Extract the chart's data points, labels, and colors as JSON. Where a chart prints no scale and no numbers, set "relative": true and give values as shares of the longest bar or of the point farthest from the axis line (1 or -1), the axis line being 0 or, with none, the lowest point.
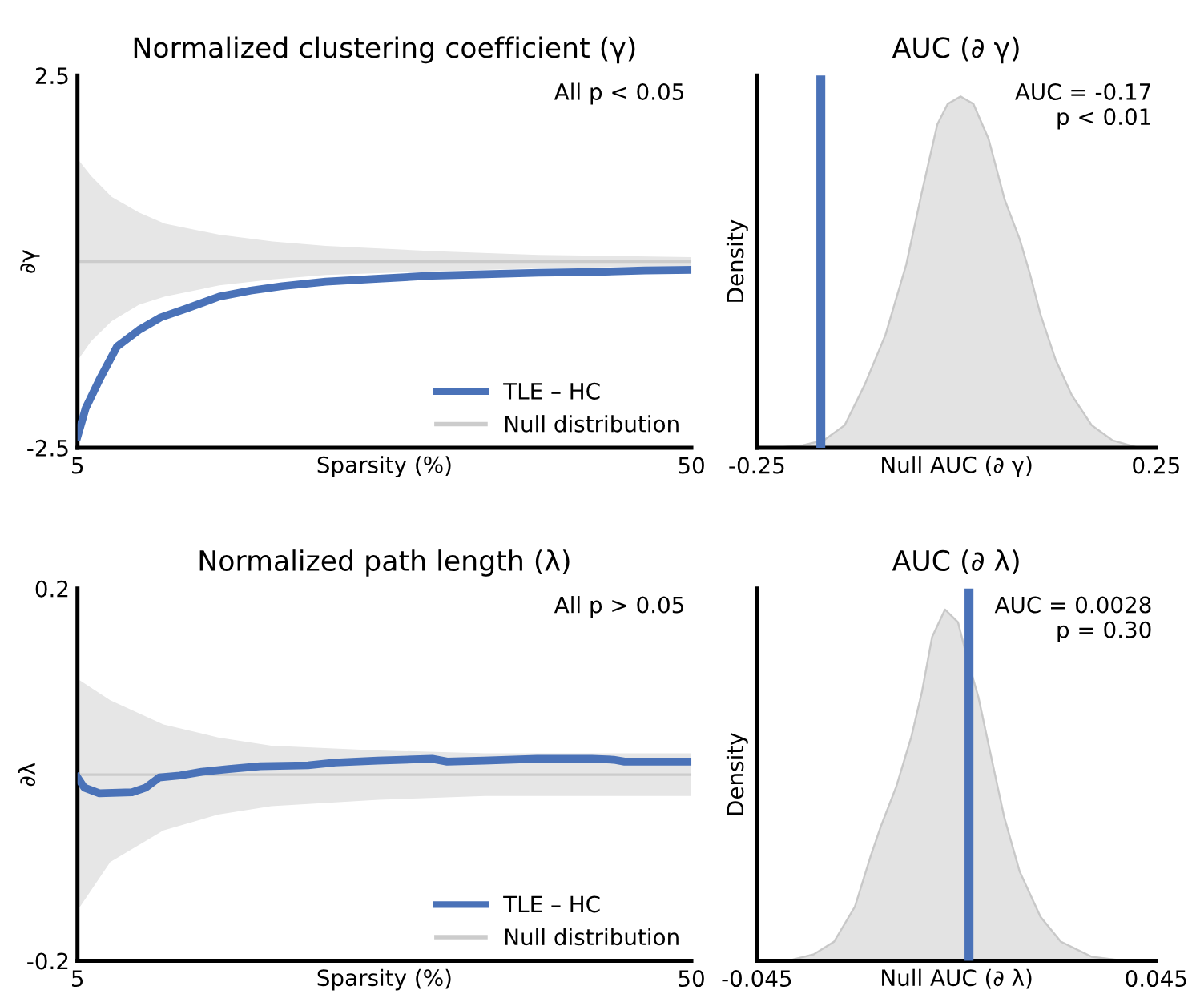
{
  "chart_data": [
    {
      "type": "line",
      "title": "Normalized clustering coefficient (γ)",
      "xlabel": "Sparsity (%)",
      "ylabel": "∂γ",
      "xlim": [
        5,
        50
      ],
      "xticks": [
        5,
        50
      ],
      "ylim": [
        -2.5,
        2.5
      ],
      "yticks": [
        -2.5,
        2.5
      ],
      "legend": "bottom right",
      "grid": false,
      "annotations": [
        "All p < 0.05"
      ],
      "series": [
        {
          "name": "TLE – HC",
          "color": "#4a72b8",
          "x": [
            5,
            5.6,
            6.6,
            7.9,
            9.5,
            11.1,
            13.0,
            15.4,
            17.7,
            20.0,
            23.2,
            27.1,
            31.0,
            34.9,
            38.8,
            42.7,
            46.6,
            50
          ],
          "values": [
            -2.35,
            -1.97,
            -1.59,
            -1.14,
            -0.92,
            -0.75,
            -0.63,
            -0.47,
            -0.39,
            -0.33,
            -0.27,
            -0.23,
            -0.19,
            -0.17,
            -0.15,
            -0.14,
            -0.12,
            -0.11
          ]
        },
        {
          "name": "Null distribution",
          "color": "#cccccc",
          "x": [
            5,
            6,
            7.5,
            9.5,
            11.4,
            15.4,
            19.3,
            23.2,
            31,
            38.8,
            50
          ],
          "values": [
            0,
            0,
            0,
            0,
            0,
            0,
            0,
            0,
            0,
            0,
            0
          ],
          "upper": [
            1.38,
            1.15,
            0.87,
            0.66,
            0.51,
            0.36,
            0.27,
            0.21,
            0.14,
            0.09,
            0.06
          ],
          "lower": [
            -1.33,
            -1.07,
            -0.8,
            -0.58,
            -0.47,
            -0.32,
            -0.24,
            -0.18,
            -0.13,
            -0.09,
            -0.06
          ]
        }
      ]
    },
    {
      "type": "area",
      "title": "AUC (∂ γ)",
      "xlabel": "Null AUC (∂ γ)",
      "ylabel": "Density",
      "relative": true,
      "xlim": [
        -0.25,
        0.25
      ],
      "xticks": [
        -0.25,
        0.25
      ],
      "tick_labels": "x",
      "annotations": [
        "AUC = -0.17\np < 0.01"
      ],
      "ref_lines": [
        {
          "axis": "x",
          "value": -0.17,
          "color": "#4a72b8"
        }
      ],
      "series": [
        {
          "color": "#e3e3e3",
          "x": [
            -0.224,
            -0.192,
            -0.166,
            -0.14,
            -0.115,
            -0.089,
            -0.063,
            -0.044,
            -0.024,
            -0.011,
            0.005,
            0.021,
            0.04,
            0.06,
            0.079,
            0.092,
            0.105,
            0.124,
            0.144,
            0.169,
            0.195,
            0.227
          ],
          "values": [
            0,
            0.007,
            0.021,
            0.064,
            0.179,
            0.321,
            0.521,
            0.721,
            0.921,
            0.979,
            1,
            0.979,
            0.879,
            0.707,
            0.593,
            0.493,
            0.379,
            0.25,
            0.15,
            0.064,
            0.021,
            0
          ]
        }
      ]
    },
    {
      "type": "line",
      "title": "Normalized path length (λ)",
      "xlabel": "Sparsity (%)",
      "ylabel": "∂λ",
      "xlim": [
        5,
        50
      ],
      "xticks": [
        5,
        50
      ],
      "ylim": [
        -0.2,
        0.2
      ],
      "yticks": [
        -0.2,
        0.2
      ],
      "legend": "bottom right",
      "grid": false,
      "annotations": [
        "All p > 0.05"
      ],
      "series": [
        {
          "name": "TLE – HC",
          "color": "#4a72b8",
          "x": [
            5,
            5.5,
            6.6,
            9.0,
            10.0,
            11.0,
            12.5,
            14.1,
            16.1,
            18.4,
            21.9,
            23.9,
            27.0,
            31.0,
            32.1,
            34.8,
            38.7,
            42.7,
            44.3,
            45.1,
            50
          ],
          "values": [
            -0.003,
            -0.014,
            -0.02,
            -0.019,
            -0.014,
            -0.003,
            -0.001,
            0.003,
            0.006,
            0.009,
            0.01,
            0.013,
            0.015,
            0.017,
            0.014,
            0.015,
            0.017,
            0.017,
            0.016,
            0.014,
            0.014
          ]
        },
        {
          "name": "Null distribution",
          "color": "#cccccc",
          "x": [
            5,
            7.4,
            11.3,
            15.3,
            19.2,
            27.1,
            34.9,
            50
          ],
          "values": [
            0,
            0,
            0,
            0,
            0,
            0,
            0,
            0
          ],
          "upper": [
            0.103,
            0.08,
            0.054,
            0.04,
            0.031,
            0.026,
            0.023,
            0.023
          ],
          "lower": [
            -0.146,
            -0.094,
            -0.06,
            -0.043,
            -0.034,
            -0.027,
            -0.023,
            -0.023
          ]
        }
      ]
    },
    {
      "type": "area",
      "title": "AUC (∂ λ)",
      "xlabel": "Null AUC (∂ λ)",
      "ylabel": "Density",
      "relative": true,
      "xlim": [
        -0.045,
        0.045
      ],
      "xticks": [
        -0.045,
        0.045
      ],
      "tick_labels": "x",
      "annotations": [
        "AUC = 0.0028\np = 0.30"
      ],
      "ref_lines": [
        {
          "axis": "x",
          "value": 0.0028,
          "color": "#4a72b8"
        }
      ],
      "series": [
        {
          "color": "#e3e3e3",
          "x": [
            -0.038,
            -0.0322,
            -0.0276,
            -0.0229,
            -0.0194,
            -0.0171,
            -0.0136,
            -0.0102,
            -0.0078,
            -0.0055,
            -0.0026,
            0.0003,
            0.0026,
            0.0049,
            0.0073,
            0.0107,
            0.0142,
            0.0189,
            0.0235,
            0.0305,
            0.0375
          ],
          "values": [
            0,
            0.018,
            0.054,
            0.154,
            0.296,
            0.381,
            0.495,
            0.637,
            0.765,
            0.922,
            1,
            0.964,
            0.851,
            0.751,
            0.609,
            0.41,
            0.254,
            0.125,
            0.054,
            0.011,
            0
          ]
        }
      ]
    }
  ]
}
